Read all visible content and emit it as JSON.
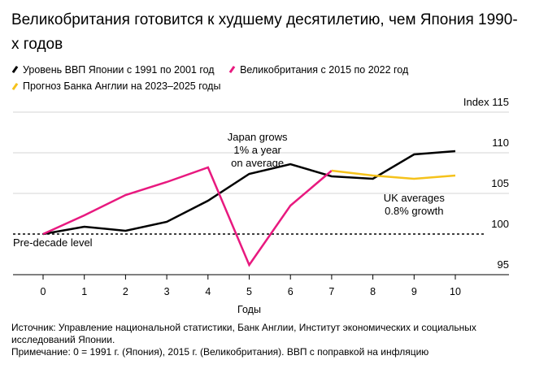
{
  "title": "Великобритания готовится к худшему десятилетию, чем Япония 1990-х годов",
  "legend": [
    {
      "label": "Уровень ВВП Японии с 1991 по 2001 год",
      "color": "#000000"
    },
    {
      "label": "Великобритания с 2015 по 2022 год",
      "color": "#e8197f"
    },
    {
      "label": "Прогноз Банка Англии на 2023–2025 годы",
      "color": "#f5c21b"
    }
  ],
  "source": "Источник: Управление национальной статистики, Банк Англии, Институт экономических и социальных исследований Японии.",
  "footnote": "Примечание: 0 = 1991 г. (Япония), 2015 г. (Великобритания). ВВП с поправкой на инфляцию",
  "chart_data": {
    "type": "line",
    "xlabel": "Годы",
    "ylabel": "Index",
    "x": [
      0,
      1,
      2,
      3,
      4,
      5,
      6,
      7,
      8,
      9,
      10
    ],
    "ylim": [
      95,
      115
    ],
    "yticks": [
      95,
      100,
      105,
      110,
      115
    ],
    "ytick_labels": [
      "95",
      "100",
      "105",
      "110",
      "Index 115"
    ],
    "grid": true,
    "series": [
      {
        "name": "Уровень ВВП Японии с 1991 по 2001 год",
        "color": "#000000",
        "x": [
          0,
          1,
          2,
          3,
          4,
          5,
          6,
          7,
          8,
          9,
          10
        ],
        "values": [
          100.0,
          100.9,
          100.4,
          101.5,
          104.1,
          107.4,
          108.6,
          107.1,
          106.8,
          109.8,
          110.2
        ]
      },
      {
        "name": "Великобритания с 2015 по 2022 год",
        "color": "#e8197f",
        "x": [
          0,
          1,
          2,
          3,
          4,
          5,
          6,
          7
        ],
        "values": [
          100.0,
          102.3,
          104.8,
          106.4,
          108.2,
          96.2,
          103.5,
          107.8
        ]
      },
      {
        "name": "Прогноз Банка Англии на 2023–2025 годы",
        "color": "#f5c21b",
        "x": [
          7,
          8,
          9,
          10
        ],
        "values": [
          107.8,
          107.2,
          106.8,
          107.2
        ]
      }
    ],
    "reference_line": {
      "value": 100,
      "label": "Pre-decade level"
    },
    "annotations": [
      {
        "lines": [
          "Japan grows",
          "1% a year",
          "on average"
        ],
        "x": 5.2,
        "y": 111.5
      },
      {
        "lines": [
          "UK averages",
          "0.8% growth"
        ],
        "x": 9,
        "y": 104
      }
    ]
  }
}
